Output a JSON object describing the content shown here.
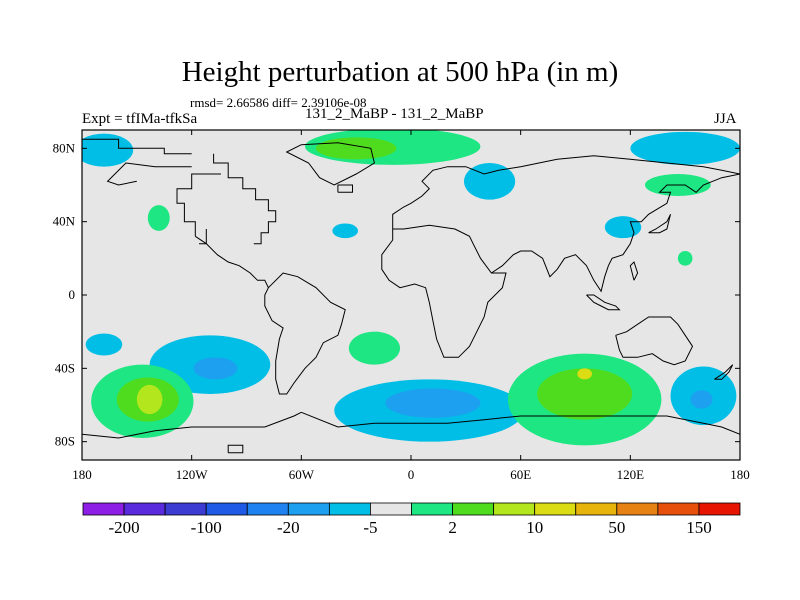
{
  "title": "Height perturbation at 500 hPa (in m)",
  "stats": "rmsd= 2.66586 diff= 2.39106e-08",
  "left_label": "Expt = tfIMa-tfkSa",
  "center_label": "131_2_MaBP - 131_2_MaBP",
  "right_label": "JJA",
  "axes": {
    "lon_range": [
      -180,
      180
    ],
    "lat_range": [
      -90,
      90
    ],
    "lon_ticks": [
      {
        "value": -180,
        "label": "180"
      },
      {
        "value": -120,
        "label": "120W"
      },
      {
        "value": -60,
        "label": "60W"
      },
      {
        "value": 0,
        "label": "0"
      },
      {
        "value": 60,
        "label": "60E"
      },
      {
        "value": 120,
        "label": "120E"
      },
      {
        "value": 180,
        "label": "180"
      }
    ],
    "lat_ticks": [
      {
        "value": 80,
        "label": "80N"
      },
      {
        "value": 40,
        "label": "40N"
      },
      {
        "value": 0,
        "label": "0"
      },
      {
        "value": -40,
        "label": "40S"
      },
      {
        "value": -80,
        "label": "80S"
      }
    ]
  },
  "colorbar": {
    "colors": [
      "#8c1ee6",
      "#5a2bdc",
      "#3c3cd2",
      "#1e5ae6",
      "#1e82f0",
      "#1ea0f0",
      "#00bee6",
      "#e6e6e6",
      "#1ee682",
      "#50dc1e",
      "#b4e61e",
      "#dcdc14",
      "#e6b40a",
      "#e68214",
      "#e6500a",
      "#e61400"
    ],
    "labels": [
      {
        "after_box": 1,
        "text": "-200"
      },
      {
        "after_box": 3,
        "text": "-100"
      },
      {
        "after_box": 5,
        "text": "-20"
      },
      {
        "after_box": 7,
        "text": "-5"
      },
      {
        "after_box": 9,
        "text": "2"
      },
      {
        "after_box": 11,
        "text": "10"
      },
      {
        "after_box": 13,
        "text": "50"
      },
      {
        "after_box": 15,
        "text": "150"
      }
    ]
  },
  "regions": [
    {
      "name": "arctic-west-negative",
      "level": 6,
      "lon": -168,
      "lat": 79,
      "rlon": 16,
      "rlat": 9
    },
    {
      "name": "arctic-green-band",
      "level": 8,
      "lon": -10,
      "lat": 81,
      "rlon": 48,
      "rlat": 10
    },
    {
      "name": "arctic-green-core",
      "level": 9,
      "lon": -30,
      "lat": 80,
      "rlon": 22,
      "rlat": 6
    },
    {
      "name": "asia-negative",
      "level": 6,
      "lon": 43,
      "lat": 62,
      "rlon": 14,
      "rlat": 10
    },
    {
      "name": "arctic-east-negative",
      "level": 6,
      "lon": 150,
      "lat": 80,
      "rlon": 30,
      "rlat": 9
    },
    {
      "name": "pacific-positive",
      "level": 8,
      "lon": 146,
      "lat": 60,
      "rlon": 18,
      "rlat": 6
    },
    {
      "name": "pacific-small-negative",
      "level": 6,
      "lon": 116,
      "lat": 37,
      "rlon": 10,
      "rlat": 6
    },
    {
      "name": "pacific-small-positive",
      "level": 8,
      "lon": 150,
      "lat": 20,
      "rlon": 4,
      "rlat": 4
    },
    {
      "name": "westpac-positive",
      "level": 8,
      "lon": -138,
      "lat": 42,
      "rlon": 6,
      "rlat": 7
    },
    {
      "name": "atlantic-small-negative",
      "level": 6,
      "lon": -36,
      "lat": 35,
      "rlon": 7,
      "rlat": 4
    },
    {
      "name": "south-pacific-negative",
      "level": 6,
      "lon": -110,
      "lat": -38,
      "rlon": 33,
      "rlat": 16
    },
    {
      "name": "south-pacific-core",
      "level": 5,
      "lon": -107,
      "lat": -40,
      "rlon": 12,
      "rlat": 6
    },
    {
      "name": "far-south-pacific-negative",
      "level": 6,
      "lon": -168,
      "lat": -27,
      "rlon": 10,
      "rlat": 6
    },
    {
      "name": "southwest-pacific-positive",
      "level": 8,
      "lon": -147,
      "lat": -58,
      "rlon": 28,
      "rlat": 20
    },
    {
      "name": "southwest-pacific-core",
      "level": 9,
      "lon": -144,
      "lat": -57,
      "rlon": 17,
      "rlat": 12
    },
    {
      "name": "southwest-pacific-peak",
      "level": 10,
      "lon": -143,
      "lat": -57,
      "rlon": 7,
      "rlat": 8
    },
    {
      "name": "south-atlantic-positive",
      "level": 8,
      "lon": -20,
      "lat": -29,
      "rlon": 14,
      "rlat": 9
    },
    {
      "name": "southern-ocean-negative",
      "level": 6,
      "lon": 10,
      "lat": -63,
      "rlon": 52,
      "rlat": 17
    },
    {
      "name": "southern-ocean-core",
      "level": 5,
      "lon": 12,
      "lat": -59,
      "rlon": 26,
      "rlat": 8
    },
    {
      "name": "indian-ocean-positive",
      "level": 8,
      "lon": 95,
      "lat": -57,
      "rlon": 42,
      "rlat": 25
    },
    {
      "name": "indian-ocean-core",
      "level": 9,
      "lon": 95,
      "lat": -54,
      "rlon": 26,
      "rlat": 14
    },
    {
      "name": "indian-ocean-peak",
      "level": 11,
      "lon": 95,
      "lat": -43,
      "rlon": 4,
      "rlat": 3
    },
    {
      "name": "tasman-negative",
      "level": 6,
      "lon": 160,
      "lat": -55,
      "rlon": 18,
      "rlat": 16
    },
    {
      "name": "tasman-core",
      "level": 5,
      "lon": 159,
      "lat": -57,
      "rlon": 6,
      "rlat": 5
    }
  ],
  "coastlines": [
    [
      [
        -180,
        85
      ],
      [
        -160,
        85
      ],
      [
        -160,
        80
      ],
      [
        -135,
        80
      ],
      [
        -135,
        77
      ],
      [
        -120,
        77
      ]
    ],
    [
      [
        -108,
        77
      ],
      [
        -108,
        72
      ],
      [
        -100,
        72
      ],
      [
        -100,
        64
      ],
      [
        -92,
        64
      ],
      [
        -92,
        58
      ],
      [
        -85,
        58
      ],
      [
        -85,
        52
      ],
      [
        -78,
        52
      ],
      [
        -78,
        46
      ],
      [
        -74,
        46
      ],
      [
        -74,
        40
      ],
      [
        -78,
        40
      ],
      [
        -78,
        34
      ],
      [
        -82,
        34
      ],
      [
        -82,
        28
      ],
      [
        -86,
        28
      ]
    ],
    [
      [
        -104,
        66
      ],
      [
        -112,
        66
      ],
      [
        -120,
        66
      ],
      [
        -120,
        58
      ],
      [
        -128,
        58
      ],
      [
        -128,
        50
      ],
      [
        -124,
        50
      ],
      [
        -124,
        40
      ],
      [
        -118,
        40
      ],
      [
        -118,
        32
      ]
    ],
    [
      [
        -118,
        32
      ],
      [
        -112,
        28
      ],
      [
        -106,
        22
      ],
      [
        -100,
        18
      ],
      [
        -94,
        16
      ],
      [
        -88,
        12
      ],
      [
        -84,
        8
      ],
      [
        -80,
        8
      ],
      [
        -78,
        4
      ]
    ],
    [
      [
        -78,
        4
      ],
      [
        -70,
        12
      ],
      [
        -62,
        10
      ],
      [
        -52,
        4
      ],
      [
        -44,
        -4
      ],
      [
        -36,
        -8
      ],
      [
        -38,
        -16
      ],
      [
        -40,
        -22
      ],
      [
        -48,
        -26
      ],
      [
        -52,
        -34
      ],
      [
        -58,
        -40
      ],
      [
        -64,
        -48
      ],
      [
        -68,
        -54
      ],
      [
        -72,
        -54
      ],
      [
        -74,
        -46
      ],
      [
        -74,
        -36
      ],
      [
        -72,
        -24
      ],
      [
        -70,
        -18
      ],
      [
        -76,
        -14
      ],
      [
        -80,
        -6
      ],
      [
        -80,
        0
      ],
      [
        -78,
        4
      ]
    ],
    [
      [
        -60,
        82
      ],
      [
        -40,
        83
      ],
      [
        -22,
        80
      ],
      [
        -20,
        72
      ],
      [
        -30,
        66
      ],
      [
        -42,
        60
      ],
      [
        -50,
        64
      ],
      [
        -56,
        72
      ],
      [
        -68,
        78
      ],
      [
        -60,
        82
      ]
    ],
    [
      [
        -10,
        36
      ],
      [
        -10,
        44
      ],
      [
        -4,
        48
      ],
      [
        0,
        50
      ],
      [
        6,
        54
      ],
      [
        10,
        58
      ],
      [
        6,
        62
      ],
      [
        12,
        68
      ],
      [
        20,
        70
      ],
      [
        30,
        70
      ],
      [
        40,
        66
      ],
      [
        48,
        68
      ],
      [
        60,
        70
      ],
      [
        70,
        72
      ],
      [
        80,
        74
      ],
      [
        100,
        76
      ],
      [
        120,
        74
      ],
      [
        140,
        72
      ],
      [
        160,
        70
      ],
      [
        170,
        68
      ],
      [
        180,
        66
      ]
    ],
    [
      [
        -10,
        36
      ],
      [
        -4,
        36
      ],
      [
        10,
        38
      ],
      [
        24,
        36
      ],
      [
        32,
        32
      ],
      [
        34,
        28
      ],
      [
        38,
        20
      ],
      [
        44,
        12
      ],
      [
        52,
        12
      ],
      [
        50,
        4
      ],
      [
        42,
        -4
      ],
      [
        40,
        -12
      ],
      [
        36,
        -20
      ],
      [
        32,
        -28
      ],
      [
        26,
        -34
      ],
      [
        18,
        -34
      ],
      [
        14,
        -24
      ],
      [
        12,
        -14
      ],
      [
        10,
        -4
      ],
      [
        8,
        4
      ],
      [
        2,
        6
      ],
      [
        -6,
        4
      ],
      [
        -12,
        8
      ],
      [
        -16,
        14
      ],
      [
        -16,
        22
      ],
      [
        -10,
        30
      ],
      [
        -10,
        36
      ]
    ],
    [
      [
        44,
        12
      ],
      [
        50,
        16
      ],
      [
        56,
        22
      ],
      [
        60,
        24
      ],
      [
        66,
        24
      ],
      [
        72,
        20
      ],
      [
        76,
        10
      ],
      [
        80,
        14
      ],
      [
        84,
        20
      ],
      [
        90,
        22
      ],
      [
        96,
        16
      ],
      [
        100,
        8
      ],
      [
        104,
        2
      ],
      [
        106,
        10
      ],
      [
        108,
        16
      ],
      [
        110,
        20
      ],
      [
        116,
        22
      ],
      [
        120,
        28
      ],
      [
        122,
        34
      ],
      [
        120,
        40
      ],
      [
        126,
        40
      ],
      [
        130,
        44
      ],
      [
        140,
        50
      ],
      [
        142,
        56
      ],
      [
        136,
        56
      ],
      [
        140,
        60
      ],
      [
        150,
        60
      ],
      [
        156,
        56
      ],
      [
        160,
        60
      ],
      [
        170,
        64
      ],
      [
        180,
        66
      ]
    ],
    [
      [
        112,
        -22
      ],
      [
        114,
        -30
      ],
      [
        116,
        -34
      ],
      [
        124,
        -34
      ],
      [
        132,
        -32
      ],
      [
        138,
        -36
      ],
      [
        144,
        -38
      ],
      [
        150,
        -36
      ],
      [
        154,
        -28
      ],
      [
        150,
        -22
      ],
      [
        146,
        -16
      ],
      [
        142,
        -12
      ],
      [
        136,
        -12
      ],
      [
        130,
        -12
      ],
      [
        124,
        -16
      ],
      [
        118,
        -20
      ],
      [
        112,
        -22
      ]
    ],
    [
      [
        -60,
        -64
      ],
      [
        -40,
        -72
      ],
      [
        -20,
        -70
      ],
      [
        0,
        -70
      ],
      [
        20,
        -70
      ],
      [
        40,
        -68
      ],
      [
        60,
        -66
      ],
      [
        80,
        -66
      ],
      [
        100,
        -66
      ],
      [
        120,
        -66
      ],
      [
        140,
        -66
      ],
      [
        160,
        -70
      ],
      [
        170,
        -72
      ],
      [
        180,
        -76
      ]
    ],
    [
      [
        -180,
        -76
      ],
      [
        -160,
        -78
      ],
      [
        -140,
        -74
      ],
      [
        -120,
        -72
      ],
      [
        -100,
        -72
      ],
      [
        -80,
        -72
      ],
      [
        -64,
        -66
      ],
      [
        -60,
        -64
      ]
    ],
    [
      [
        -100,
        -86
      ],
      [
        -100,
        -82
      ],
      [
        -92,
        -82
      ],
      [
        -92,
        -86
      ],
      [
        -100,
        -86
      ]
    ],
    [
      [
        -40,
        56
      ],
      [
        -40,
        60
      ],
      [
        -32,
        60
      ],
      [
        -32,
        56
      ],
      [
        -40,
        56
      ]
    ],
    [
      [
        -116,
        28
      ],
      [
        -112,
        28
      ],
      [
        -112,
        36
      ]
    ],
    [
      [
        96,
        0
      ],
      [
        100,
        -4
      ],
      [
        104,
        -6
      ],
      [
        108,
        -8
      ],
      [
        114,
        -8
      ],
      [
        112,
        -6
      ],
      [
        106,
        -4
      ],
      [
        100,
        0
      ],
      [
        96,
        0
      ]
    ],
    [
      [
        130,
        34
      ],
      [
        134,
        36
      ],
      [
        140,
        40
      ],
      [
        142,
        44
      ],
      [
        140,
        36
      ],
      [
        136,
        34
      ],
      [
        130,
        34
      ]
    ],
    [
      [
        122,
        8
      ],
      [
        124,
        12
      ],
      [
        122,
        18
      ],
      [
        120,
        16
      ],
      [
        122,
        8
      ]
    ],
    [
      [
        166,
        -46
      ],
      [
        172,
        -42
      ],
      [
        176,
        -38
      ],
      [
        174,
        -42
      ],
      [
        170,
        -46
      ],
      [
        166,
        -46
      ]
    ],
    [
      [
        -150,
        62
      ],
      [
        -160,
        60
      ],
      [
        -166,
        62
      ],
      [
        -162,
        66
      ],
      [
        -156,
        72
      ],
      [
        -140,
        70
      ],
      [
        -130,
        70
      ],
      [
        -120,
        70
      ]
    ]
  ]
}
